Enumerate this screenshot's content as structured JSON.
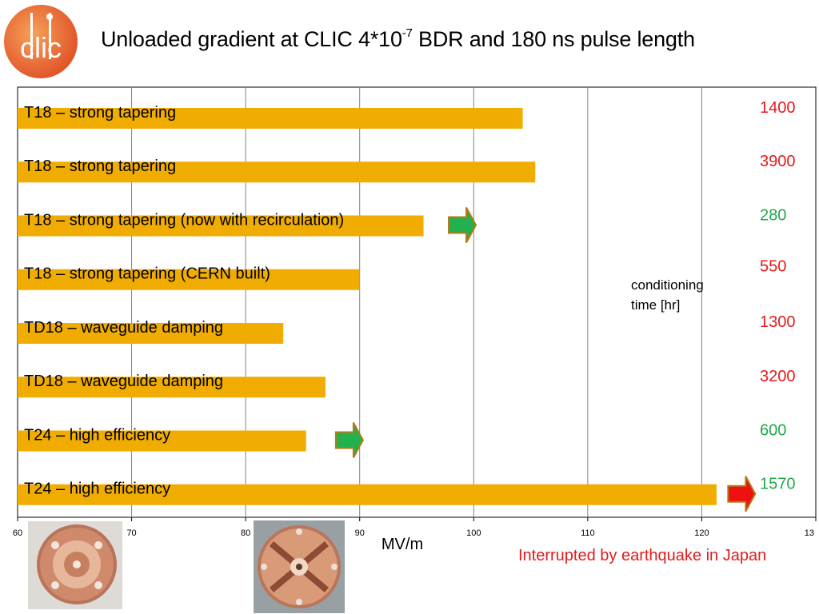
{
  "title": {
    "main": "Unloaded gradient at CLIC 4*10",
    "exponent": "-7",
    "rest": " BDR and 180 ns pulse length"
  },
  "logo": {
    "text": "clic"
  },
  "note": "Interrupted by earthquake in Japan",
  "chart_data": {
    "type": "bar",
    "orientation": "horizontal",
    "categories": [
      "T18 – strong tapering",
      "T18 – strong tapering",
      "T18 – strong tapering (now with recirculation)",
      "T18 – strong tapering (CERN built)",
      "TD18 – waveguide damping",
      "TD18 – waveguide damping",
      "T24 – high efficiency",
      "T24 – high efficiency"
    ],
    "values": [
      104.3,
      105.4,
      95.6,
      90.0,
      83.3,
      87.0,
      85.3,
      121.3
    ],
    "xlim": [
      60,
      130
    ],
    "xticks": [
      "60",
      "70",
      "80",
      "90",
      "100",
      "110",
      "120",
      "13"
    ],
    "xlabel": "MV/m",
    "grid": "vertical",
    "bar_color": "#f0ac00",
    "conditioning_label": "conditioning\ntime [hr]",
    "conditioning_times": [
      {
        "value": "1400",
        "color": "#e31a1c"
      },
      {
        "value": "3900",
        "color": "#e31a1c"
      },
      {
        "value": "280",
        "color": "#1faa4a"
      },
      {
        "value": "550",
        "color": "#e31a1c"
      },
      {
        "value": "1300",
        "color": "#e31a1c"
      },
      {
        "value": "3200",
        "color": "#e31a1c"
      },
      {
        "value": "600",
        "color": "#1faa4a"
      },
      {
        "value": "1570",
        "color": "#1faa4a"
      }
    ],
    "arrows": [
      {
        "row": 2,
        "at": 99.0,
        "color": "#22b14c"
      },
      {
        "row": 6,
        "at": 89.1,
        "color": "#22b14c"
      },
      {
        "row": 7,
        "at": 123.5,
        "color": "#ee1111"
      }
    ]
  }
}
